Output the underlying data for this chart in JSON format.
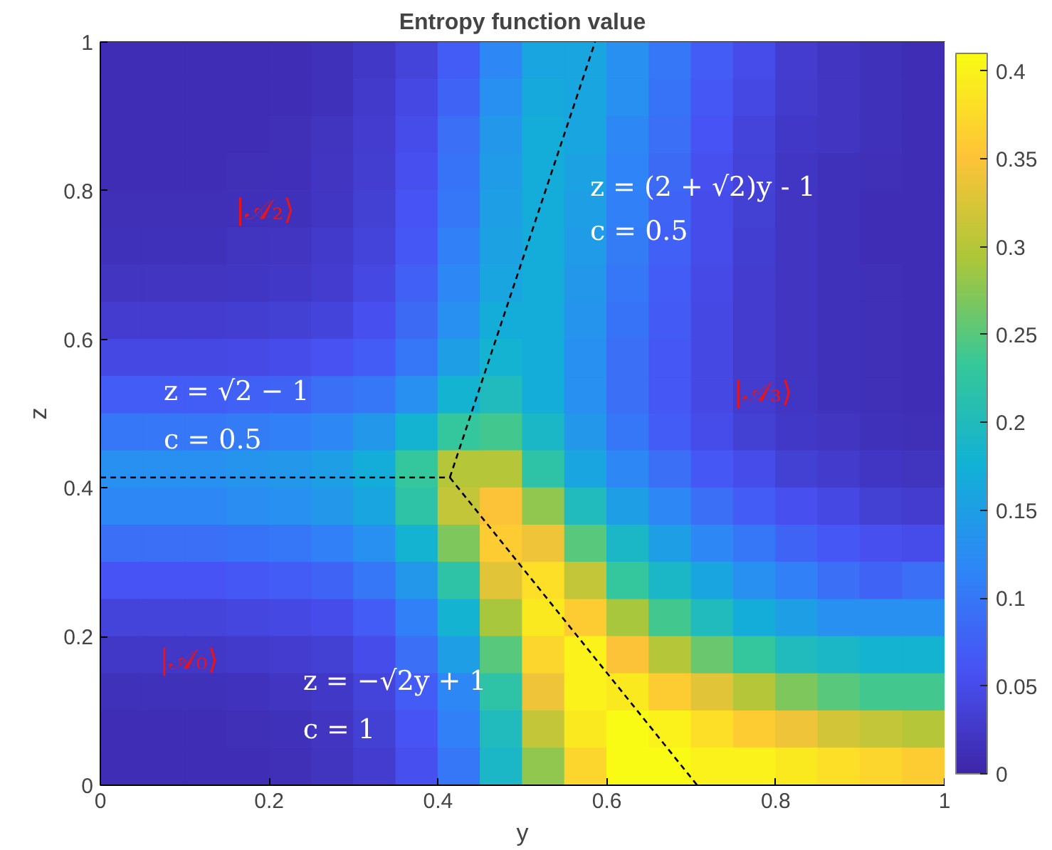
{
  "chart_data": {
    "type": "heatmap",
    "title": "Entropy function value",
    "xlabel": "y",
    "ylabel": "z",
    "xlim": [
      0,
      1
    ],
    "ylim": [
      0,
      1
    ],
    "xticks": [
      0,
      0.2,
      0.4,
      0.6,
      0.8,
      1
    ],
    "yticks": [
      0,
      0.2,
      0.4,
      0.6,
      0.8,
      1
    ],
    "clim": [
      0,
      0.41
    ],
    "cticks": [
      0,
      0.05,
      0.1,
      0.15,
      0.2,
      0.25,
      0.3,
      0.35,
      0.4
    ],
    "cells": [
      [
        0.01,
        0.01,
        0.01,
        0.01,
        0.01,
        0.015,
        0.025,
        0.04,
        0.07,
        0.12,
        0.16,
        0.16,
        0.13,
        0.1,
        0.07,
        0.05,
        0.03,
        0.02,
        0.015,
        0.01
      ],
      [
        0.01,
        0.01,
        0.01,
        0.01,
        0.01,
        0.016,
        0.027,
        0.045,
        0.08,
        0.13,
        0.165,
        0.16,
        0.13,
        0.095,
        0.065,
        0.045,
        0.028,
        0.02,
        0.015,
        0.01
      ],
      [
        0.01,
        0.01,
        0.01,
        0.01,
        0.012,
        0.018,
        0.03,
        0.05,
        0.09,
        0.14,
        0.17,
        0.16,
        0.12,
        0.09,
        0.06,
        0.04,
        0.025,
        0.02,
        0.015,
        0.01
      ],
      [
        0.01,
        0.01,
        0.01,
        0.012,
        0.014,
        0.02,
        0.032,
        0.055,
        0.095,
        0.145,
        0.17,
        0.155,
        0.115,
        0.085,
        0.055,
        0.038,
        0.022,
        0.016,
        0.012,
        0.01
      ],
      [
        0.012,
        0.012,
        0.012,
        0.014,
        0.016,
        0.022,
        0.035,
        0.06,
        0.1,
        0.15,
        0.17,
        0.15,
        0.11,
        0.08,
        0.05,
        0.035,
        0.02,
        0.015,
        0.01,
        0.01
      ],
      [
        0.015,
        0.015,
        0.016,
        0.018,
        0.02,
        0.026,
        0.04,
        0.065,
        0.11,
        0.155,
        0.17,
        0.145,
        0.105,
        0.075,
        0.05,
        0.033,
        0.02,
        0.015,
        0.01,
        0.01
      ],
      [
        0.02,
        0.02,
        0.02,
        0.022,
        0.025,
        0.03,
        0.045,
        0.075,
        0.12,
        0.16,
        0.17,
        0.14,
        0.1,
        0.07,
        0.048,
        0.03,
        0.02,
        0.015,
        0.012,
        0.01
      ],
      [
        0.03,
        0.03,
        0.03,
        0.032,
        0.035,
        0.04,
        0.055,
        0.085,
        0.13,
        0.17,
        0.17,
        0.135,
        0.095,
        0.068,
        0.045,
        0.03,
        0.02,
        0.015,
        0.012,
        0.01
      ],
      [
        0.045,
        0.045,
        0.046,
        0.048,
        0.05,
        0.058,
        0.07,
        0.1,
        0.15,
        0.18,
        0.17,
        0.13,
        0.09,
        0.065,
        0.045,
        0.03,
        0.02,
        0.015,
        0.012,
        0.01
      ],
      [
        0.07,
        0.07,
        0.072,
        0.075,
        0.08,
        0.09,
        0.1,
        0.13,
        0.18,
        0.2,
        0.17,
        0.13,
        0.09,
        0.065,
        0.045,
        0.03,
        0.022,
        0.016,
        0.012,
        0.01
      ],
      [
        0.1,
        0.1,
        0.1,
        0.105,
        0.11,
        0.12,
        0.14,
        0.18,
        0.23,
        0.24,
        0.19,
        0.14,
        0.1,
        0.07,
        0.05,
        0.035,
        0.025,
        0.02,
        0.015,
        0.012
      ],
      [
        0.13,
        0.13,
        0.13,
        0.135,
        0.14,
        0.15,
        0.17,
        0.23,
        0.3,
        0.3,
        0.22,
        0.16,
        0.12,
        0.09,
        0.065,
        0.05,
        0.035,
        0.028,
        0.022,
        0.018
      ],
      [
        0.12,
        0.12,
        0.12,
        0.125,
        0.13,
        0.14,
        0.16,
        0.22,
        0.31,
        0.35,
        0.28,
        0.2,
        0.15,
        0.12,
        0.09,
        0.07,
        0.055,
        0.045,
        0.035,
        0.03
      ],
      [
        0.09,
        0.09,
        0.09,
        0.095,
        0.1,
        0.11,
        0.13,
        0.18,
        0.27,
        0.36,
        0.34,
        0.25,
        0.19,
        0.15,
        0.12,
        0.1,
        0.08,
        0.065,
        0.055,
        0.05
      ],
      [
        0.06,
        0.06,
        0.06,
        0.065,
        0.07,
        0.08,
        0.1,
        0.14,
        0.22,
        0.33,
        0.38,
        0.31,
        0.23,
        0.19,
        0.16,
        0.13,
        0.11,
        0.09,
        0.08,
        0.09
      ],
      [
        0.04,
        0.04,
        0.04,
        0.042,
        0.045,
        0.05,
        0.07,
        0.11,
        0.18,
        0.29,
        0.39,
        0.36,
        0.29,
        0.24,
        0.2,
        0.17,
        0.15,
        0.13,
        0.13,
        0.13
      ],
      [
        0.025,
        0.025,
        0.025,
        0.027,
        0.03,
        0.035,
        0.05,
        0.09,
        0.15,
        0.25,
        0.37,
        0.4,
        0.35,
        0.3,
        0.26,
        0.23,
        0.2,
        0.19,
        0.18,
        0.18
      ],
      [
        0.015,
        0.015,
        0.015,
        0.017,
        0.02,
        0.025,
        0.04,
        0.07,
        0.12,
        0.22,
        0.34,
        0.4,
        0.39,
        0.36,
        0.33,
        0.3,
        0.27,
        0.25,
        0.24,
        0.24
      ],
      [
        0.01,
        0.01,
        0.01,
        0.012,
        0.015,
        0.02,
        0.035,
        0.06,
        0.11,
        0.2,
        0.31,
        0.39,
        0.41,
        0.4,
        0.38,
        0.36,
        0.34,
        0.32,
        0.31,
        0.3
      ],
      [
        0.01,
        0.01,
        0.01,
        0.01,
        0.012,
        0.018,
        0.03,
        0.055,
        0.1,
        0.19,
        0.28,
        0.37,
        0.41,
        0.41,
        0.4,
        0.4,
        0.39,
        0.38,
        0.37,
        0.36
      ]
    ],
    "series": [
      {
        "type": "line",
        "color": "#000000",
        "line_style": "dashed",
        "x": [
          0,
          0.414
        ],
        "values": [
          0.414,
          0.414
        ]
      },
      {
        "type": "line",
        "color": "#000000",
        "line_style": "dashed",
        "x": [
          0.414,
          0.586
        ],
        "values": [
          0.414,
          1
        ]
      },
      {
        "type": "line",
        "color": "#000000",
        "line_style": "dashed",
        "x": [
          0.414,
          0.707
        ],
        "values": [
          0.414,
          0
        ]
      }
    ],
    "annotations": [
      "z = √2 − 1",
      "c = 0.5",
      "z = (2 + √2)y - 1",
      "c = 0.5",
      "z = −√2y + 1",
      "c = 1",
      "|𝒜₂⟩",
      "|𝒜₃⟩",
      "|𝒜₀⟩"
    ]
  }
}
